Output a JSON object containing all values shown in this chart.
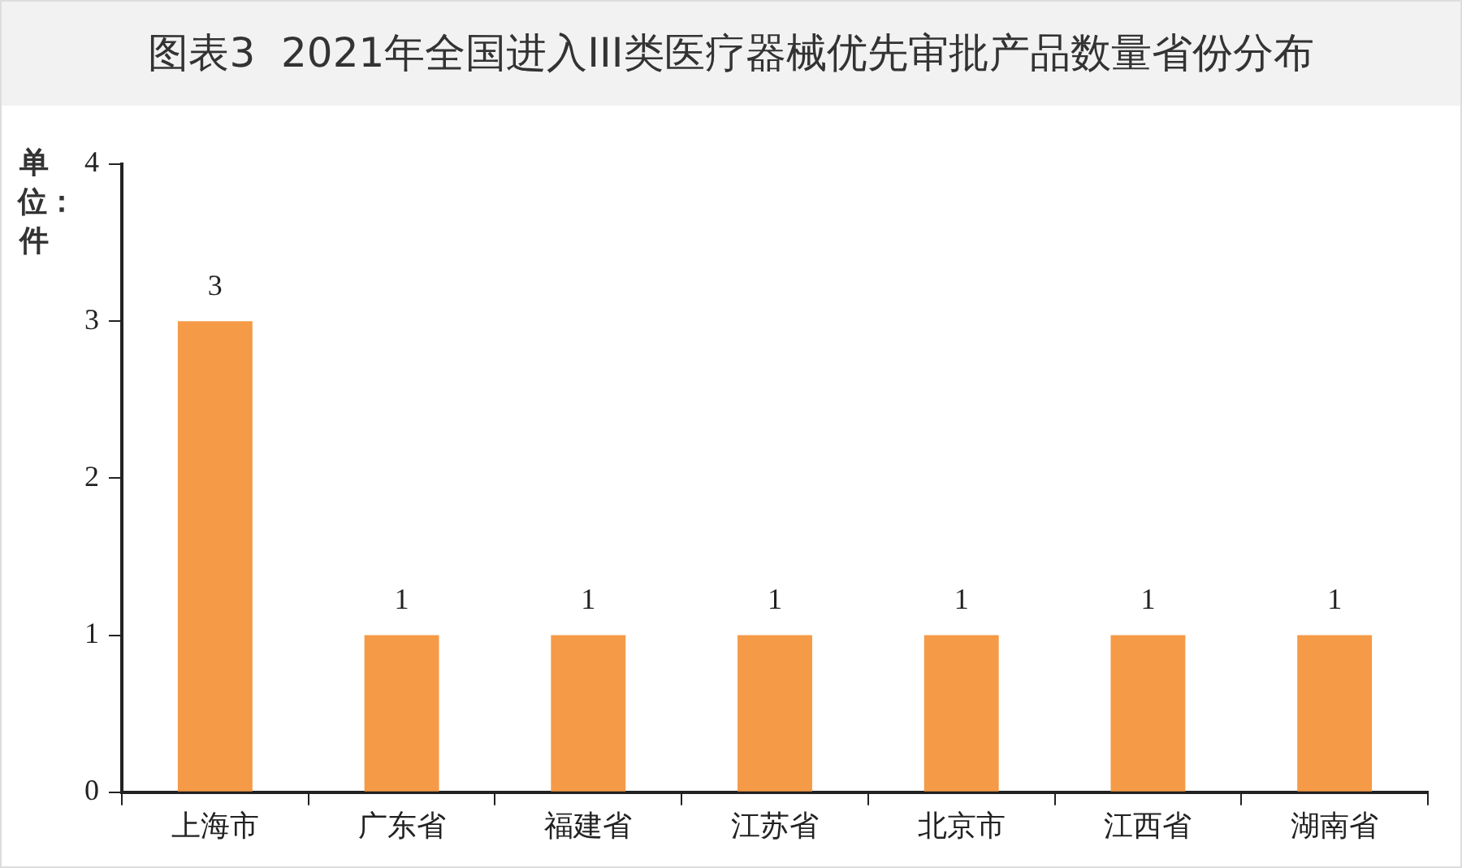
{
  "chart_data": {
    "type": "bar",
    "title": "图表3  2021年全国进入III类医疗器械优先审批产品数量省份分布",
    "ylabel": "单位：件",
    "categories": [
      "上海市",
      "广东省",
      "福建省",
      "江苏省",
      "北京市",
      "江西省",
      "湖南省"
    ],
    "values": [
      3,
      1,
      1,
      1,
      1,
      1,
      1
    ],
    "color": "#f59a46",
    "ylim": [
      0,
      4
    ],
    "yticks": [
      0,
      1,
      2,
      3,
      4
    ],
    "grid": false,
    "data_labels": true
  }
}
